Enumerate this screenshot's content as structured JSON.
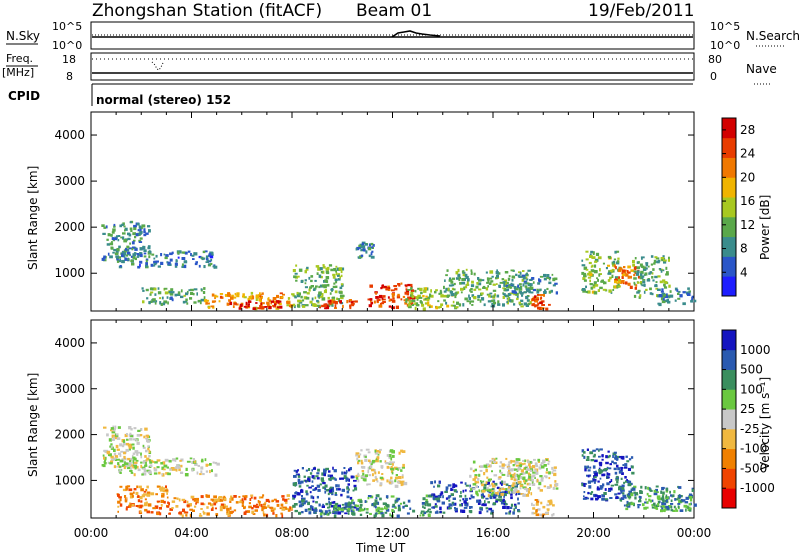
{
  "header": {
    "station": "Zhongshan Station (fitACF)",
    "beam": "Beam 01",
    "date": "19/Feb/2011"
  },
  "panel_labels": {
    "nsky": "N.Sky",
    "freq_line1": "Freq.",
    "freq_line2": "[MHz]",
    "cpid": "CPID",
    "nsearch": "N.Search",
    "nave": "Nave",
    "nsky_top_tick": "10^5",
    "nsky_bottom_tick": "10^0",
    "nsearch_top_tick": "10^5",
    "nsearch_bottom_tick": "10^0",
    "freq_top_tick": "18",
    "freq_bottom_tick": "8",
    "nave_top_tick": "80",
    "nave_bottom_tick": "0",
    "cpid_text": "normal (stereo) 152"
  },
  "colors": {
    "power": [
      "#1e1eff",
      "#2a56c8",
      "#3a8c8c",
      "#5aa84a",
      "#a8c820",
      "#f0b400",
      "#f07800",
      "#e83c00",
      "#d20000"
    ],
    "velocity": [
      "#e80000",
      "#f04400",
      "#f08000",
      "#f0b840",
      "#c8c8c8",
      "#6ac840",
      "#3a8e5e",
      "#2a5ab0",
      "#1414c0"
    ]
  },
  "chart_data": [
    {
      "type": "heatmap",
      "name": "power",
      "ylabel": "Slant Range [km]",
      "xlabel": "",
      "ylim": [
        180,
        4500
      ],
      "y_ticks": [
        "1000",
        "2000",
        "3000",
        "4000"
      ],
      "x_ticks": [
        "00:00",
        "04:00",
        "08:00",
        "12:00",
        "16:00",
        "20:00",
        "00:00"
      ],
      "colorbar": {
        "label": "Power [dB]",
        "ticks": [
          "4",
          "8",
          "12",
          "16",
          "20",
          "24",
          "28"
        ],
        "range": [
          0,
          30
        ]
      },
      "blobs": [
        {
          "t": [
            0.4,
            2.3
          ],
          "r": [
            1300,
            2150
          ],
          "v": 9
        },
        {
          "t": [
            1.0,
            5.0
          ],
          "r": [
            1150,
            1500
          ],
          "v": 7
        },
        {
          "t": [
            2.0,
            4.5
          ],
          "r": [
            350,
            700
          ],
          "v": 10
        },
        {
          "t": [
            4.5,
            8.0
          ],
          "r": [
            250,
            600
          ],
          "v": 20
        },
        {
          "t": [
            5.5,
            7.5
          ],
          "r": [
            250,
            420
          ],
          "v": 27
        },
        {
          "t": [
            8.0,
            10.0
          ],
          "r": [
            300,
            1200
          ],
          "v": 12
        },
        {
          "t": [
            9.0,
            10.5
          ],
          "r": [
            250,
            450
          ],
          "v": 26
        },
        {
          "t": [
            10.5,
            11.2
          ],
          "r": [
            1350,
            1700
          ],
          "v": 8
        },
        {
          "t": [
            11.0,
            12.8
          ],
          "r": [
            280,
            800
          ],
          "v": 25
        },
        {
          "t": [
            12.5,
            14.5
          ],
          "r": [
            250,
            700
          ],
          "v": 14
        },
        {
          "t": [
            14.0,
            17.5
          ],
          "r": [
            300,
            1100
          ],
          "v": 11
        },
        {
          "t": [
            16.5,
            18.5
          ],
          "r": [
            600,
            1000
          ],
          "v": 9
        },
        {
          "t": [
            17.5,
            18.2
          ],
          "r": [
            250,
            550
          ],
          "v": 24
        },
        {
          "t": [
            19.5,
            21.0
          ],
          "r": [
            600,
            1500
          ],
          "v": 13
        },
        {
          "t": [
            20.8,
            21.8
          ],
          "r": [
            700,
            1200
          ],
          "v": 22
        },
        {
          "t": [
            21.5,
            23.0
          ],
          "r": [
            500,
            1400
          ],
          "v": 11
        },
        {
          "t": [
            22.5,
            24.0
          ],
          "r": [
            350,
            700
          ],
          "v": 8
        }
      ]
    },
    {
      "type": "heatmap",
      "name": "velocity",
      "ylabel": "Slant Range [km]",
      "xlabel": "Time UT",
      "ylim": [
        180,
        4500
      ],
      "y_ticks": [
        "1000",
        "2000",
        "3000",
        "4000"
      ],
      "x_ticks": [
        "00:00",
        "04:00",
        "08:00",
        "12:00",
        "16:00",
        "20:00",
        "00:00"
      ],
      "colorbar": {
        "label": "Velocity [m s⁻¹]",
        "ticks": [
          "1000",
          "500",
          "100",
          "25",
          "-25",
          "-100",
          "-500",
          "-1000"
        ]
      },
      "blobs": [
        {
          "t": [
            0.4,
            2.3
          ],
          "r": [
            1300,
            2200
          ],
          "v": 4
        },
        {
          "t": [
            1.0,
            5.0
          ],
          "r": [
            1150,
            1500
          ],
          "v": 4
        },
        {
          "t": [
            1.0,
            3.0
          ],
          "r": [
            300,
            900
          ],
          "v": 2
        },
        {
          "t": [
            3.0,
            8.0
          ],
          "r": [
            250,
            700
          ],
          "v": 2
        },
        {
          "t": [
            8.0,
            10.5
          ],
          "r": [
            300,
            1300
          ],
          "v": 7
        },
        {
          "t": [
            9.0,
            11.0
          ],
          "r": [
            250,
            600
          ],
          "v": 6
        },
        {
          "t": [
            10.5,
            12.5
          ],
          "r": [
            900,
            1700
          ],
          "v": 4
        },
        {
          "t": [
            11.0,
            13.5
          ],
          "r": [
            250,
            700
          ],
          "v": 6
        },
        {
          "t": [
            13.5,
            17.0
          ],
          "r": [
            300,
            1000
          ],
          "v": 7
        },
        {
          "t": [
            15.0,
            17.5
          ],
          "r": [
            700,
            1500
          ],
          "v": 4
        },
        {
          "t": [
            16.5,
            18.5
          ],
          "r": [
            800,
            1500
          ],
          "v": 4
        },
        {
          "t": [
            17.5,
            18.5
          ],
          "r": [
            250,
            600
          ],
          "v": 3
        },
        {
          "t": [
            19.5,
            21.5
          ],
          "r": [
            600,
            1700
          ],
          "v": 7
        },
        {
          "t": [
            21.0,
            24.0
          ],
          "r": [
            400,
            900
          ],
          "v": 6
        },
        {
          "t": [
            22.5,
            24.0
          ],
          "r": [
            350,
            700
          ],
          "v": 6
        }
      ]
    }
  ]
}
